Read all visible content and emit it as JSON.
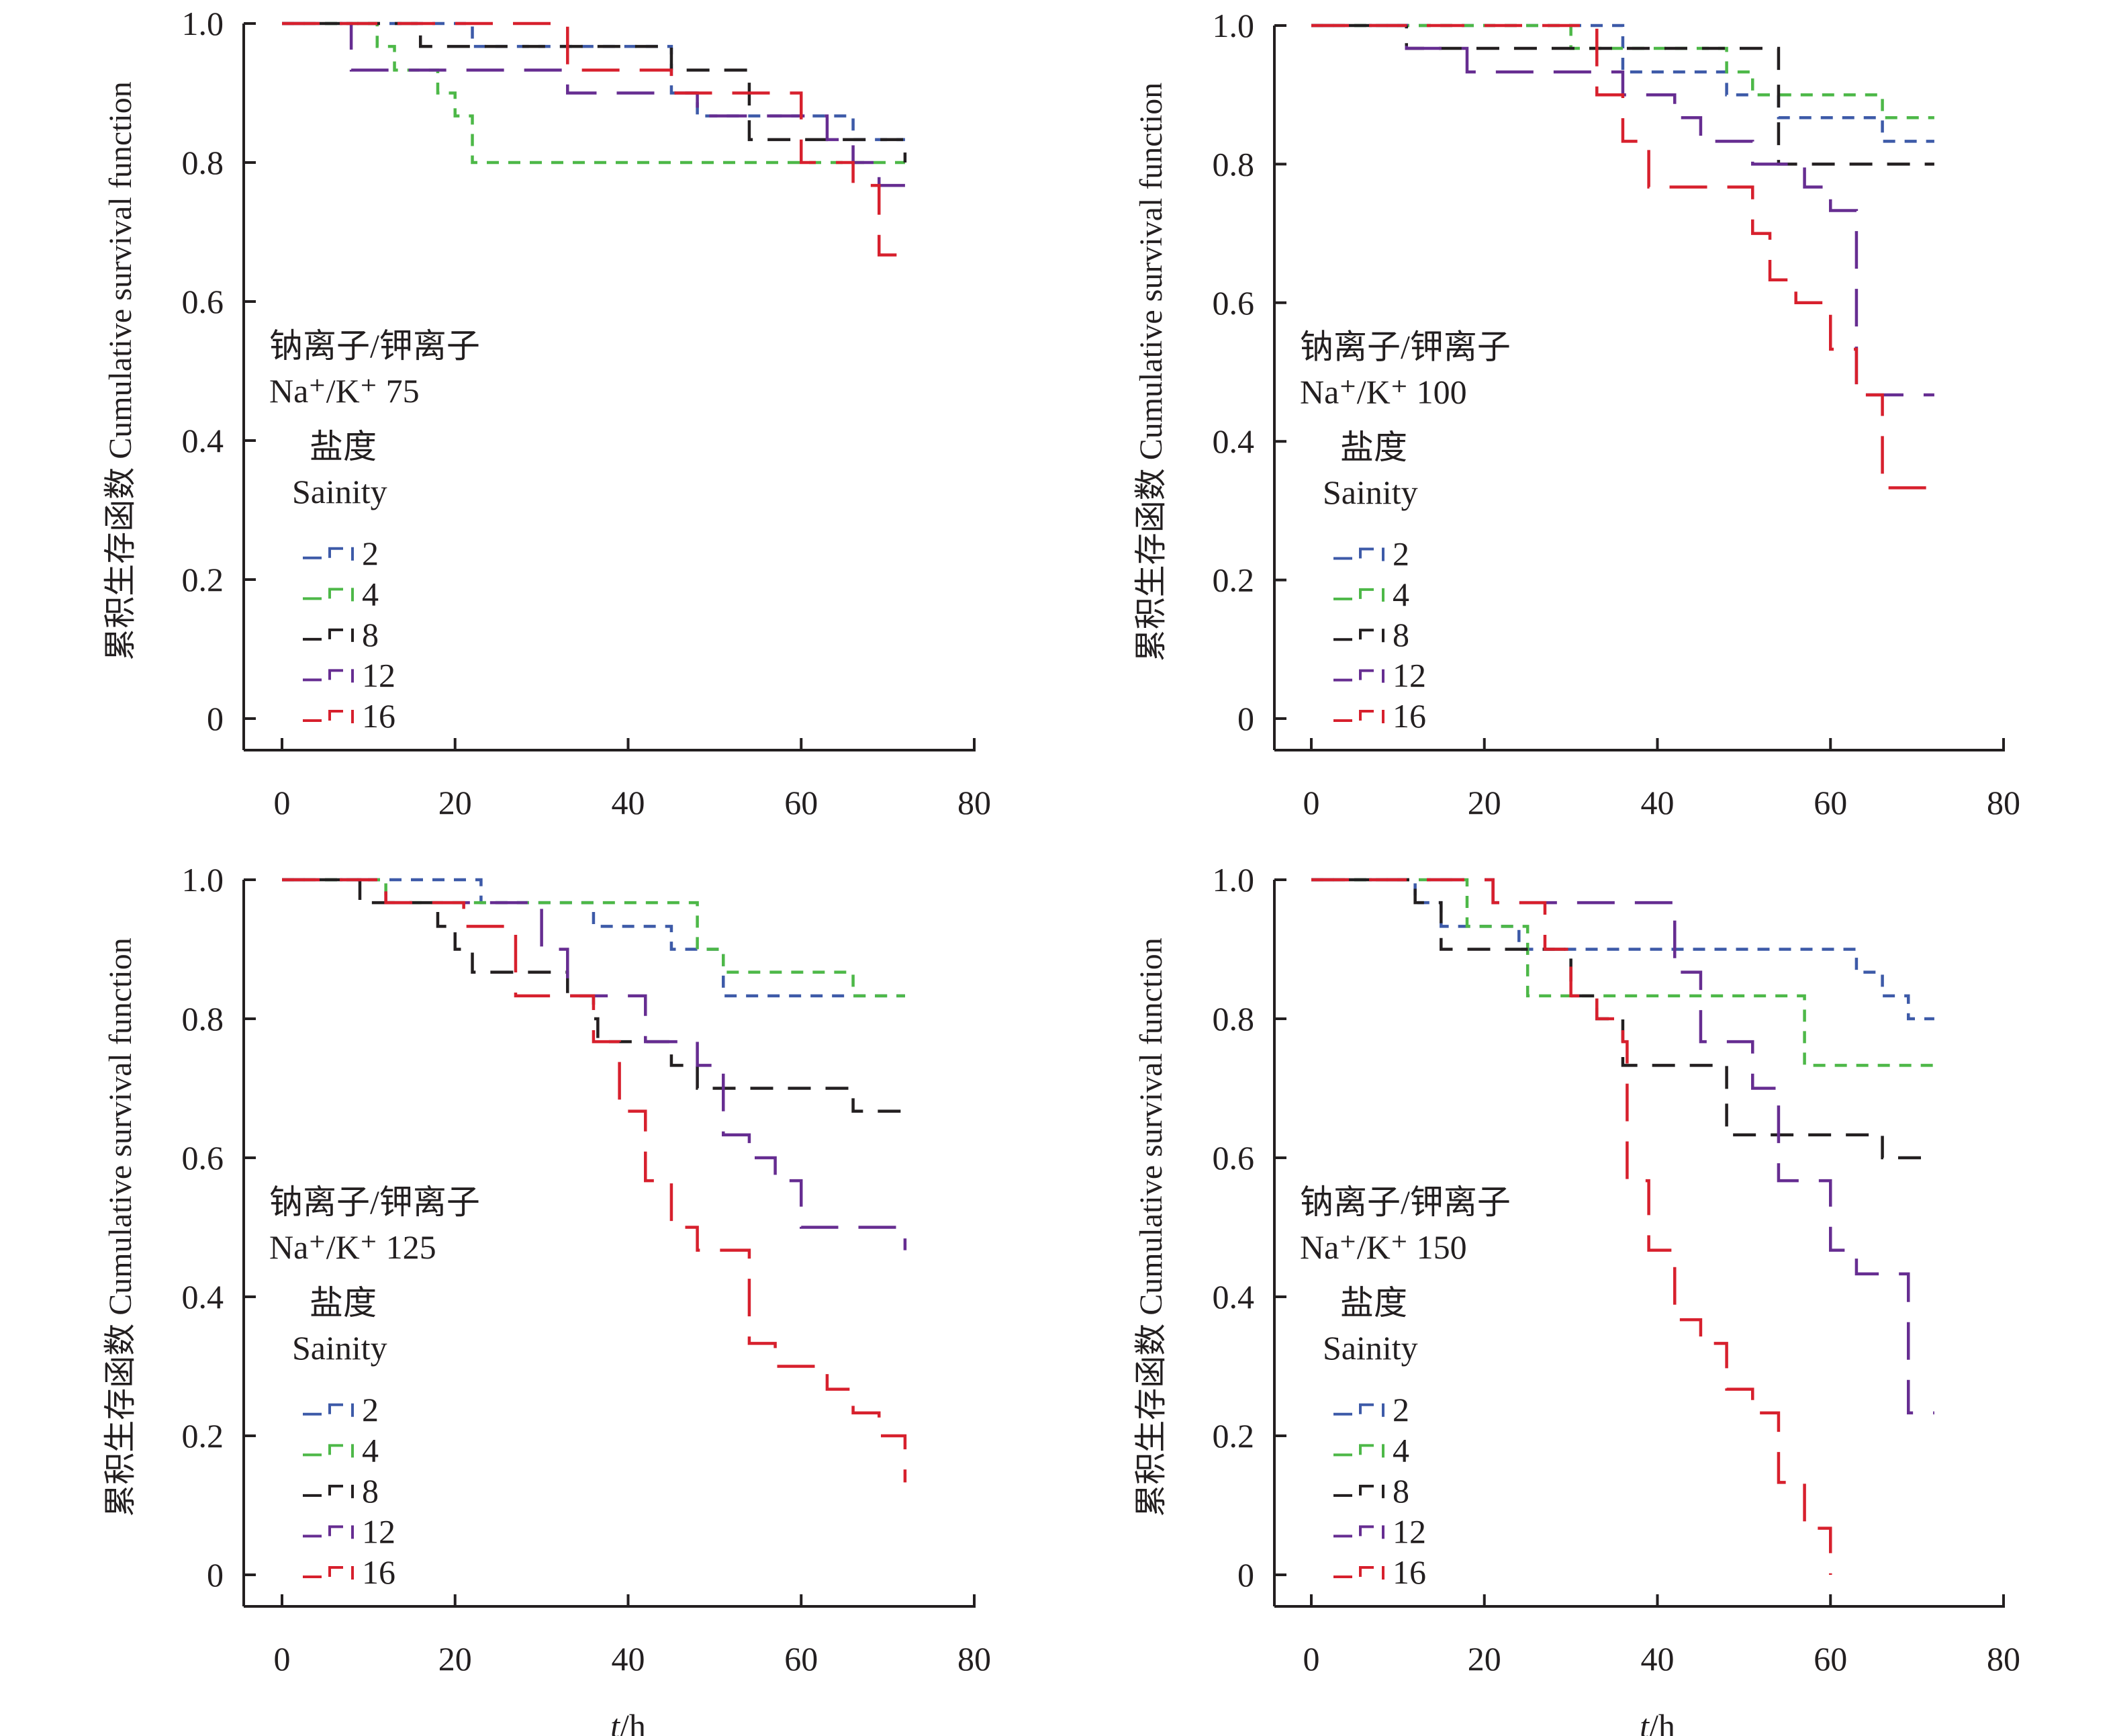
{
  "chart_data": [
    {
      "type": "line",
      "step": true,
      "panel": "top-left",
      "annotation_cn": "钠离子/钾离子",
      "annotation_en": "Na⁺/K⁺ 75",
      "ylabel": "累积生存函数 Cumulative survival function",
      "xlabel": "",
      "xlim": [
        0,
        80
      ],
      "ylim": [
        0,
        1.0
      ],
      "xticks": [
        "0",
        "20",
        "40",
        "60",
        "80"
      ],
      "yticks": [
        "0",
        "0.2",
        "0.4",
        "0.6",
        "0.8",
        "1.0"
      ],
      "legend_title_cn": "盐度",
      "legend_title_en": "Sainity",
      "legend_position": "left-middle",
      "series": [
        {
          "name": "2",
          "color": "#3d5aa8",
          "dash": "dense",
          "steps": [
            [
              0,
              1.0
            ],
            [
              22,
              0.967
            ],
            [
              45,
              0.9
            ],
            [
              48,
              0.867
            ],
            [
              66,
              0.833
            ],
            [
              72,
              0.833
            ]
          ]
        },
        {
          "name": "4",
          "color": "#4db848",
          "dash": "dense",
          "steps": [
            [
              0,
              1.0
            ],
            [
              11,
              0.967
            ],
            [
              13,
              0.933
            ],
            [
              18,
              0.9
            ],
            [
              20,
              0.867
            ],
            [
              22,
              0.8
            ],
            [
              72,
              0.8
            ]
          ]
        },
        {
          "name": "8",
          "color": "#231f20",
          "dash": "medium",
          "steps": [
            [
              0,
              1.0
            ],
            [
              16,
              0.967
            ],
            [
              45,
              0.933
            ],
            [
              54,
              0.833
            ],
            [
              72,
              0.8
            ]
          ]
        },
        {
          "name": "12",
          "color": "#662d91",
          "dash": "long",
          "steps": [
            [
              0,
              1.0
            ],
            [
              8,
              0.933
            ],
            [
              33,
              0.9
            ],
            [
              48,
              0.867
            ],
            [
              63,
              0.833
            ],
            [
              66,
              0.8
            ],
            [
              69,
              0.767
            ],
            [
              72,
              0.767
            ]
          ]
        },
        {
          "name": "16",
          "color": "#d7202d",
          "dash": "long",
          "steps": [
            [
              0,
              1.0
            ],
            [
              33,
              0.933
            ],
            [
              45,
              0.9
            ],
            [
              60,
              0.8
            ],
            [
              66,
              0.767
            ],
            [
              69,
              0.667
            ],
            [
              72,
              0.667
            ]
          ]
        }
      ]
    },
    {
      "type": "line",
      "step": true,
      "panel": "top-right",
      "annotation_cn": "钠离子/钾离子",
      "annotation_en": "Na⁺/K⁺ 100",
      "ylabel": "累积生存函数 Cumulative survival function",
      "xlabel": "",
      "xlim": [
        0,
        80
      ],
      "ylim": [
        0,
        1.0
      ],
      "xticks": [
        "0",
        "20",
        "40",
        "60",
        "80"
      ],
      "yticks": [
        "0",
        "0.2",
        "0.4",
        "0.6",
        "0.8",
        "1.0"
      ],
      "legend_title_cn": "盐度",
      "legend_title_en": "Sainity",
      "legend_position": "left-middle",
      "series": [
        {
          "name": "2",
          "color": "#3d5aa8",
          "dash": "dense",
          "steps": [
            [
              0,
              1.0
            ],
            [
              36,
              0.933
            ],
            [
              48,
              0.9
            ],
            [
              54,
              0.867
            ],
            [
              66,
              0.833
            ],
            [
              72,
              0.833
            ]
          ]
        },
        {
          "name": "4",
          "color": "#4db848",
          "dash": "dense",
          "steps": [
            [
              0,
              1.0
            ],
            [
              30,
              0.967
            ],
            [
              48,
              0.933
            ],
            [
              51,
              0.9
            ],
            [
              66,
              0.867
            ],
            [
              72,
              0.867
            ]
          ]
        },
        {
          "name": "8",
          "color": "#231f20",
          "dash": "medium",
          "steps": [
            [
              0,
              1.0
            ],
            [
              11,
              0.967
            ],
            [
              54,
              0.8
            ],
            [
              72,
              0.8
            ]
          ]
        },
        {
          "name": "12",
          "color": "#662d91",
          "dash": "long",
          "steps": [
            [
              0,
              1.0
            ],
            [
              11,
              0.967
            ],
            [
              18,
              0.933
            ],
            [
              36,
              0.9
            ],
            [
              42,
              0.867
            ],
            [
              45,
              0.833
            ],
            [
              51,
              0.8
            ],
            [
              57,
              0.767
            ],
            [
              60,
              0.733
            ],
            [
              63,
              0.467
            ],
            [
              72,
              0.467
            ]
          ]
        },
        {
          "name": "16",
          "color": "#d7202d",
          "dash": "long",
          "steps": [
            [
              0,
              1.0
            ],
            [
              33,
              0.9
            ],
            [
              36,
              0.833
            ],
            [
              39,
              0.767
            ],
            [
              51,
              0.7
            ],
            [
              53,
              0.633
            ],
            [
              56,
              0.6
            ],
            [
              60,
              0.533
            ],
            [
              63,
              0.467
            ],
            [
              66,
              0.333
            ],
            [
              72,
              0.333
            ]
          ]
        }
      ]
    },
    {
      "type": "line",
      "step": true,
      "panel": "bottom-left",
      "annotation_cn": "钠离子/钾离子",
      "annotation_en": "Na⁺/K⁺ 125",
      "ylabel": "累积生存函数 Cumulative survival function",
      "xlabel": "t/h",
      "xlim": [
        0,
        80
      ],
      "ylim": [
        0,
        1.0
      ],
      "xticks": [
        "0",
        "20",
        "40",
        "60",
        "80"
      ],
      "yticks": [
        "0",
        "0.2",
        "0.4",
        "0.6",
        "0.8",
        "1.0"
      ],
      "legend_title_cn": "盐度",
      "legend_title_en": "Sainity",
      "legend_position": "left-middle",
      "series": [
        {
          "name": "2",
          "color": "#3d5aa8",
          "dash": "dense",
          "steps": [
            [
              0,
              1.0
            ],
            [
              23,
              0.967
            ],
            [
              36,
              0.933
            ],
            [
              45,
              0.9
            ],
            [
              51,
              0.833
            ],
            [
              72,
              0.833
            ]
          ]
        },
        {
          "name": "4",
          "color": "#4db848",
          "dash": "dense",
          "steps": [
            [
              0,
              1.0
            ],
            [
              12,
              0.967
            ],
            [
              48,
              0.9
            ],
            [
              51,
              0.867
            ],
            [
              66,
              0.833
            ],
            [
              72,
              0.833
            ]
          ]
        },
        {
          "name": "8",
          "color": "#231f20",
          "dash": "medium",
          "steps": [
            [
              0,
              1.0
            ],
            [
              9,
              0.967
            ],
            [
              18,
              0.933
            ],
            [
              20,
              0.9
            ],
            [
              22,
              0.867
            ],
            [
              33,
              0.833
            ],
            [
              36,
              0.8
            ],
            [
              36.5,
              0.767
            ],
            [
              45,
              0.733
            ],
            [
              48,
              0.7
            ],
            [
              66,
              0.667
            ],
            [
              72,
              0.667
            ]
          ]
        },
        {
          "name": "12",
          "color": "#662d91",
          "dash": "long",
          "steps": [
            [
              0,
              1.0
            ],
            [
              12,
              0.967
            ],
            [
              30,
              0.9
            ],
            [
              33,
              0.833
            ],
            [
              42,
              0.767
            ],
            [
              48,
              0.733
            ],
            [
              51,
              0.633
            ],
            [
              54,
              0.6
            ],
            [
              57,
              0.567
            ],
            [
              60,
              0.5
            ],
            [
              72,
              0.467
            ]
          ]
        },
        {
          "name": "16",
          "color": "#d7202d",
          "dash": "long",
          "steps": [
            [
              0,
              1.0
            ],
            [
              12,
              0.967
            ],
            [
              21,
              0.933
            ],
            [
              27,
              0.833
            ],
            [
              36,
              0.767
            ],
            [
              39,
              0.667
            ],
            [
              42,
              0.567
            ],
            [
              45,
              0.5
            ],
            [
              48,
              0.467
            ],
            [
              54,
              0.333
            ],
            [
              57,
              0.3
            ],
            [
              63,
              0.267
            ],
            [
              66,
              0.233
            ],
            [
              69,
              0.2
            ],
            [
              72,
              0.133
            ]
          ]
        }
      ]
    },
    {
      "type": "line",
      "step": true,
      "panel": "bottom-right",
      "annotation_cn": "钠离子/钾离子",
      "annotation_en": "Na⁺/K⁺ 150",
      "ylabel": "累积生存函数 Cumulative survival function",
      "xlabel": "t/h",
      "xlim": [
        0,
        80
      ],
      "ylim": [
        0,
        1.0
      ],
      "xticks": [
        "0",
        "20",
        "40",
        "60",
        "80"
      ],
      "yticks": [
        "0",
        "0.2",
        "0.4",
        "0.6",
        "0.8",
        "1.0"
      ],
      "legend_title_cn": "盐度",
      "legend_title_en": "Sainity",
      "legend_position": "left-middle",
      "series": [
        {
          "name": "2",
          "color": "#3d5aa8",
          "dash": "dense",
          "steps": [
            [
              0,
              1.0
            ],
            [
              12,
              0.967
            ],
            [
              15,
              0.933
            ],
            [
              24,
              0.9
            ],
            [
              63,
              0.867
            ],
            [
              66,
              0.833
            ],
            [
              69,
              0.8
            ],
            [
              72,
              0.8
            ]
          ]
        },
        {
          "name": "4",
          "color": "#4db848",
          "dash": "dense",
          "steps": [
            [
              0,
              1.0
            ],
            [
              18,
              0.933
            ],
            [
              25,
              0.833
            ],
            [
              57,
              0.733
            ],
            [
              72,
              0.733
            ]
          ]
        },
        {
          "name": "8",
          "color": "#231f20",
          "dash": "medium",
          "steps": [
            [
              0,
              1.0
            ],
            [
              12,
              0.967
            ],
            [
              15,
              0.9
            ],
            [
              30,
              0.833
            ],
            [
              33,
              0.8
            ],
            [
              36,
              0.733
            ],
            [
              48,
              0.633
            ],
            [
              66,
              0.6
            ],
            [
              72,
              0.6
            ]
          ]
        },
        {
          "name": "12",
          "color": "#662d91",
          "dash": "long",
          "steps": [
            [
              0,
              1.0
            ],
            [
              21,
              0.967
            ],
            [
              42,
              0.867
            ],
            [
              45,
              0.767
            ],
            [
              51,
              0.7
            ],
            [
              54,
              0.567
            ],
            [
              60,
              0.467
            ],
            [
              63,
              0.433
            ],
            [
              69,
              0.233
            ],
            [
              72,
              0.233
            ]
          ]
        },
        {
          "name": "16",
          "color": "#d7202d",
          "dash": "long",
          "steps": [
            [
              0,
              1.0
            ],
            [
              21,
              0.967
            ],
            [
              27,
              0.9
            ],
            [
              30,
              0.833
            ],
            [
              33,
              0.8
            ],
            [
              36,
              0.767
            ],
            [
              36.5,
              0.567
            ],
            [
              39,
              0.467
            ],
            [
              42,
              0.367
            ],
            [
              45,
              0.333
            ],
            [
              48,
              0.267
            ],
            [
              51,
              0.233
            ],
            [
              54,
              0.133
            ],
            [
              57,
              0.067
            ],
            [
              60,
              0.0
            ]
          ]
        }
      ]
    }
  ]
}
